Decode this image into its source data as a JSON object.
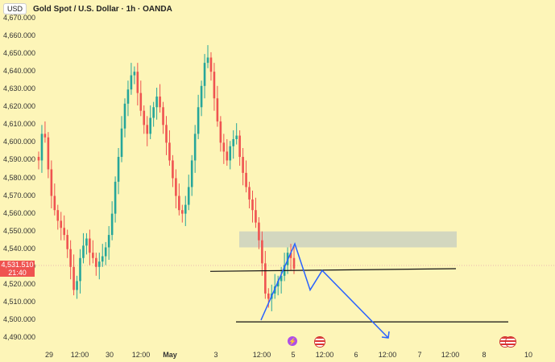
{
  "header": {
    "currency": "USD",
    "symbol": "Gold Spot / U.S. Dollar · 1h · OANDA"
  },
  "price_tag": {
    "price": "4,531.510",
    "countdown": "21:40"
  },
  "y_axis": [
    "4,670.000",
    "4,660.000",
    "4,650.000",
    "4,640.000",
    "4,630.000",
    "4,620.000",
    "4,610.000",
    "4,600.000",
    "4,590.000",
    "4,580.000",
    "4,570.000",
    "4,560.000",
    "4,550.000",
    "4,540.000",
    "4,530.000",
    "4,520.000",
    "4,510.000",
    "4,500.000",
    "4,490.000"
  ],
  "x_axis": [
    {
      "label": "29",
      "bold": false
    },
    {
      "label": "12:00",
      "bold": false
    },
    {
      "label": "30",
      "bold": false
    },
    {
      "label": "12:00",
      "bold": false
    },
    {
      "label": "May",
      "bold": true
    },
    {
      "label": "3",
      "bold": false
    },
    {
      "label": "12:00",
      "bold": false
    },
    {
      "label": "5",
      "bold": false
    },
    {
      "label": "12:00",
      "bold": false
    },
    {
      "label": "6",
      "bold": false
    },
    {
      "label": "12:00",
      "bold": false
    },
    {
      "label": "7",
      "bold": false
    },
    {
      "label": "12:00",
      "bold": false
    },
    {
      "label": "8",
      "bold": false
    },
    {
      "label": "10",
      "bold": false
    }
  ],
  "colors": {
    "up": "#26a69a",
    "down": "#ef5350",
    "projection": "#2962ff",
    "zone": "#b0bec5",
    "background": "#fdf5b8"
  },
  "events": [
    "lightning-icon",
    "us-flag-icon",
    "us-flag-icon",
    "us-flag-icon"
  ],
  "chart_data": {
    "type": "candlestick",
    "y_range": [
      4490,
      4670
    ],
    "resistance_zone": [
      4541,
      4550
    ],
    "horizontal_lines": [
      4528,
      4499
    ],
    "projection_path": [
      4500,
      4543,
      4517,
      4528,
      4490
    ],
    "closes": [
      4590,
      4605,
      4603,
      4585,
      4570,
      4562,
      4556,
      4552,
      4548,
      4540,
      4530,
      4517,
      4522,
      4535,
      4542,
      4546,
      4538,
      4535,
      4530,
      4533,
      4536,
      4541,
      4548,
      4560,
      4578,
      4592,
      4608,
      4622,
      4630,
      4638,
      4640,
      4628,
      4618,
      4610,
      4605,
      4614,
      4620,
      4626,
      4620,
      4610,
      4600,
      4590,
      4580,
      4570,
      4562,
      4560,
      4565,
      4575,
      4590,
      4605,
      4620,
      4632,
      4645,
      4648,
      4640,
      4625,
      4612,
      4600,
      4595,
      4590,
      4598,
      4602,
      4604,
      4592,
      4583,
      4575,
      4568,
      4562,
      4555,
      4545,
      4532,
      4515,
      4512,
      4515,
      4519,
      4522,
      4525,
      4531,
      4538,
      4535,
      4529
    ]
  }
}
